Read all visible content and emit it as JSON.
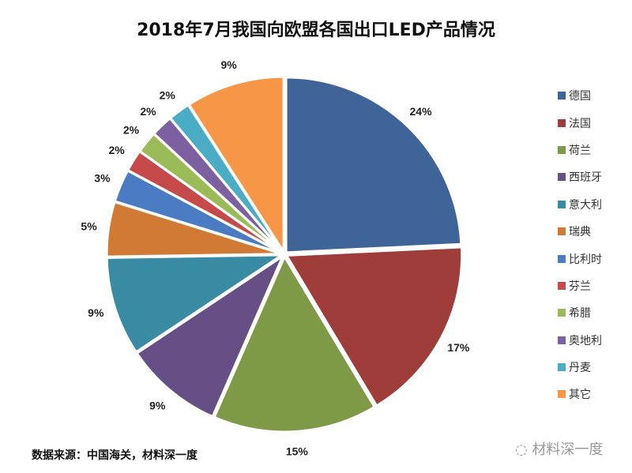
{
  "chart_data": {
    "type": "pie",
    "title": "2018年7月我国向欧盟各国出口LED产品情况",
    "categories": [
      "德国",
      "法国",
      "荷兰",
      "西班牙",
      "意大利",
      "瑞典",
      "比利时",
      "芬兰",
      "希腊",
      "奥地利",
      "丹麦",
      "其它"
    ],
    "values": [
      24,
      17,
      15,
      9,
      9,
      5,
      3,
      2,
      2,
      2,
      2,
      9
    ],
    "labels": [
      "24%",
      "17%",
      "15%",
      "9%",
      "9%",
      "5%",
      "3%",
      "2%",
      "2%",
      "2%",
      "2%",
      "9%"
    ],
    "colors": [
      "#3F6598",
      "#9E3D3A",
      "#7F9A47",
      "#664F85",
      "#398BA3",
      "#D07A35",
      "#4B7BC2",
      "#C64A4A",
      "#9BBB59",
      "#7D60A0",
      "#4BACC6",
      "#F79646"
    ],
    "legend_position": "right",
    "start": "top, clockwise"
  },
  "source": "数据来源：中国海关，材料深一度",
  "watermark": "材料深一度"
}
